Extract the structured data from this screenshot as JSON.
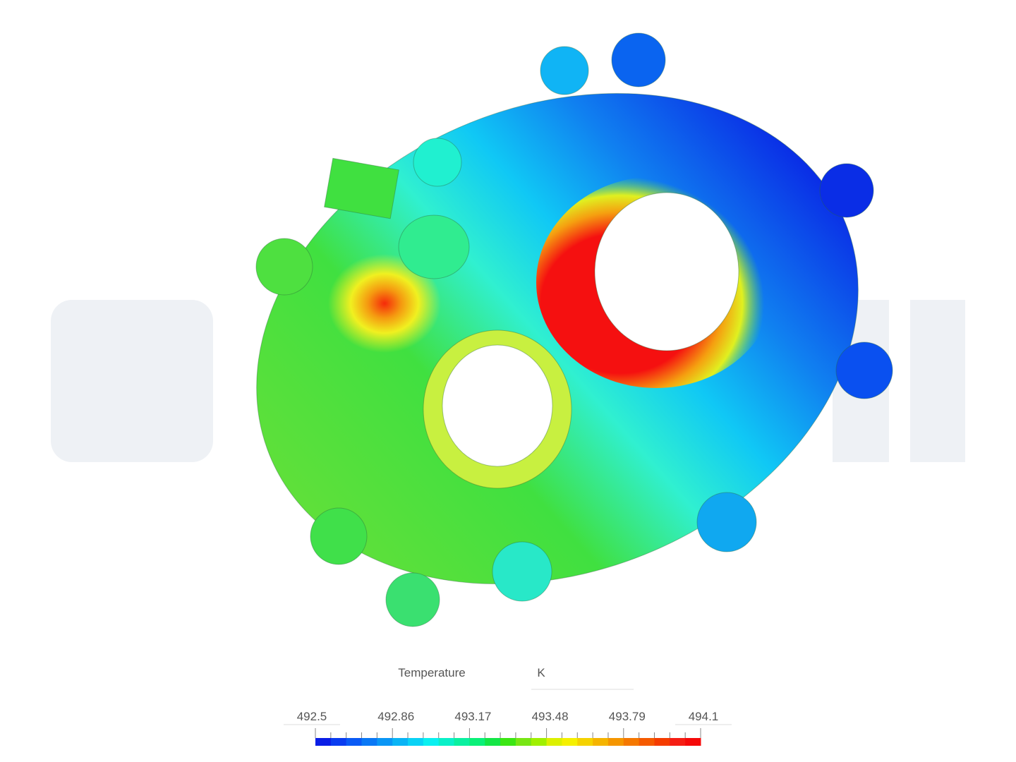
{
  "legend": {
    "title": "Temperature",
    "unit": "K",
    "ticks": [
      492.5,
      492.86,
      493.17,
      493.48,
      493.79,
      494.1
    ],
    "colors": [
      "#0a1ee6",
      "#0a3cf0",
      "#0a5af5",
      "#0a78f5",
      "#0a96f5",
      "#0ab4f5",
      "#0ad2f5",
      "#0af0f0",
      "#0af0c8",
      "#0af0a0",
      "#0af078",
      "#14e646",
      "#3ce614",
      "#78e614",
      "#a0f000",
      "#dcf000",
      "#f5f000",
      "#f5d200",
      "#f5b400",
      "#f59600",
      "#f57800",
      "#f55a00",
      "#f53c00",
      "#f51e14",
      "#f50a0a"
    ]
  }
}
